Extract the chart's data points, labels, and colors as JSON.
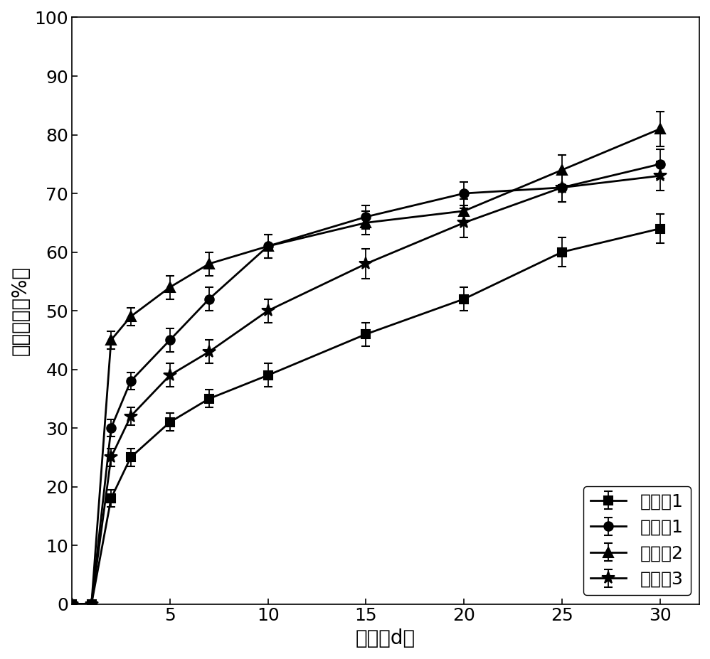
{
  "x": [
    0,
    1,
    2,
    3,
    5,
    7,
    10,
    15,
    20,
    25,
    30
  ],
  "series": {
    "实施例1": {
      "y": [
        0,
        0,
        18,
        25,
        31,
        35,
        39,
        46,
        52,
        60,
        64
      ],
      "yerr": [
        0,
        0,
        1.5,
        1.5,
        1.5,
        1.5,
        2.0,
        2.0,
        2.0,
        2.5,
        2.5
      ],
      "marker": "s",
      "color": "#000000",
      "markersize": 9
    },
    "对比例1": {
      "y": [
        0,
        0,
        30,
        38,
        45,
        52,
        61,
        66,
        70,
        71,
        75
      ],
      "yerr": [
        0,
        0,
        1.5,
        1.5,
        2.0,
        2.0,
        2.0,
        2.0,
        2.0,
        2.5,
        2.5
      ],
      "marker": "o",
      "color": "#000000",
      "markersize": 9
    },
    "对比例2": {
      "y": [
        0,
        0,
        45,
        49,
        54,
        58,
        61,
        65,
        67,
        74,
        81
      ],
      "yerr": [
        0,
        0,
        1.5,
        1.5,
        2.0,
        2.0,
        2.0,
        2.0,
        2.0,
        2.5,
        3.0
      ],
      "marker": "^",
      "color": "#000000",
      "markersize": 10
    },
    "对比例3": {
      "y": [
        0,
        0,
        25,
        32,
        39,
        43,
        50,
        58,
        65,
        71,
        73
      ],
      "yerr": [
        0,
        0,
        1.5,
        1.5,
        2.0,
        2.0,
        2.0,
        2.5,
        2.5,
        2.5,
        2.5
      ],
      "marker": "*",
      "color": "#000000",
      "markersize": 13
    }
  },
  "xlabel": "时间（d）",
  "ylabel": "硅释放率（%）",
  "xlim": [
    0,
    32
  ],
  "ylim": [
    0,
    100
  ],
  "xticks": [
    5,
    10,
    15,
    20,
    25,
    30
  ],
  "yticks": [
    0,
    10,
    20,
    30,
    40,
    50,
    60,
    70,
    80,
    90,
    100
  ],
  "legend_loc": "lower right",
  "font_size_label": 20,
  "font_size_tick": 18,
  "font_size_legend": 18,
  "line_width": 2.0,
  "capsize": 4,
  "background_color": "#ffffff"
}
